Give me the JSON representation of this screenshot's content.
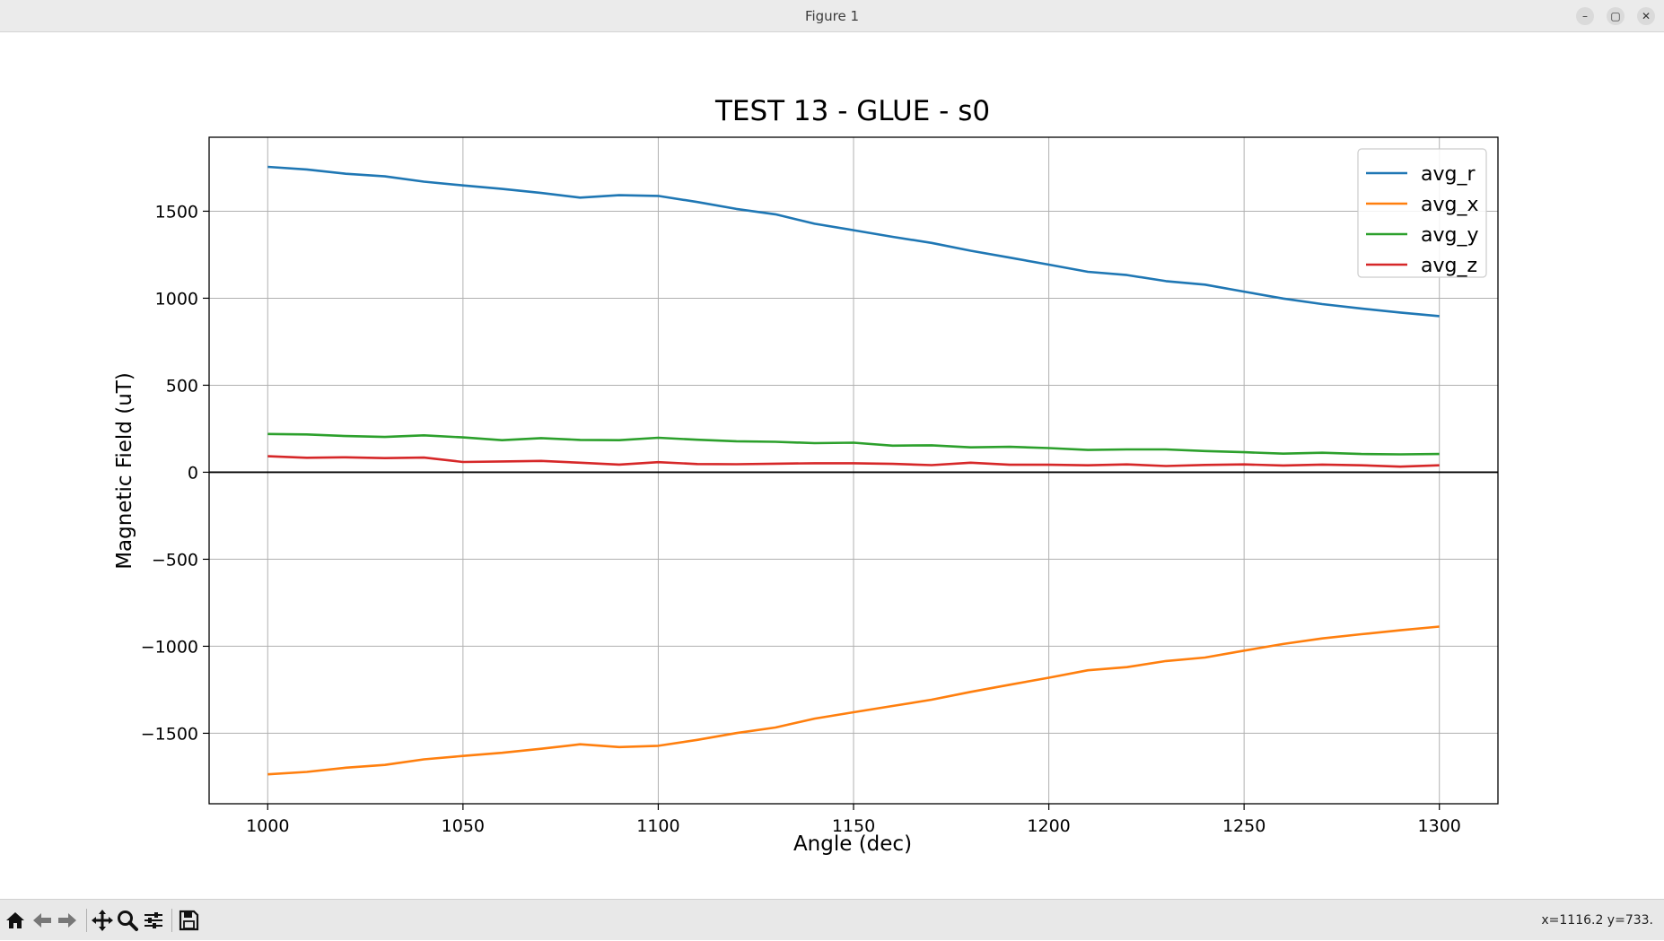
{
  "window": {
    "title": "Figure 1",
    "minimize_label": "–",
    "maximize_label": "▢",
    "close_label": "✕"
  },
  "toolbar": {
    "items": [
      "home-icon",
      "back-icon",
      "forward-icon",
      "pan-icon",
      "zoom-icon",
      "configure-subplots-icon",
      "save-icon"
    ],
    "coords_text": "x=1116.2 y=733."
  },
  "colors": {
    "avg_r": "#1f77b4",
    "avg_x": "#ff7f0e",
    "avg_y": "#2ca02c",
    "avg_z": "#d62728"
  },
  "chart_data": {
    "type": "line",
    "title": "TEST 13 - GLUE - s0",
    "xlabel": "Angle (dec)",
    "ylabel": "Magnetic Field (uT)",
    "xlim": [
      985,
      1315
    ],
    "ylim": [
      -1905,
      1925
    ],
    "xticks": [
      1000,
      1050,
      1100,
      1150,
      1200,
      1250,
      1300
    ],
    "yticks": [
      -1500,
      -1000,
      -500,
      0,
      500,
      1000,
      1500
    ],
    "xtick_labels": [
      "1000",
      "1050",
      "1100",
      "1150",
      "1200",
      "1250",
      "1300"
    ],
    "ytick_labels": [
      "−1500",
      "−1000",
      "−500",
      "0",
      "500",
      "1000",
      "1500"
    ],
    "grid": true,
    "zero_line": true,
    "legend_position": "top-right",
    "x": [
      1000,
      1010,
      1020,
      1030,
      1040,
      1050,
      1060,
      1070,
      1080,
      1090,
      1100,
      1110,
      1120,
      1130,
      1140,
      1150,
      1160,
      1170,
      1180,
      1190,
      1200,
      1210,
      1220,
      1230,
      1240,
      1250,
      1260,
      1270,
      1280,
      1290,
      1300
    ],
    "series": [
      {
        "name": "avg_r",
        "values": [
          1755,
          1740,
          1715,
          1700,
          1670,
          1648,
          1628,
          1605,
          1578,
          1592,
          1588,
          1553,
          1513,
          1482,
          1428,
          1391,
          1353,
          1318,
          1273,
          1233,
          1193,
          1152,
          1133,
          1098,
          1078,
          1038,
          998,
          966,
          941,
          918,
          897
        ]
      },
      {
        "name": "avg_x",
        "values": [
          -1736,
          -1722,
          -1698,
          -1682,
          -1650,
          -1630,
          -1612,
          -1589,
          -1563,
          -1579,
          -1572,
          -1538,
          -1499,
          -1467,
          -1416,
          -1379,
          -1343,
          -1307,
          -1262,
          -1221,
          -1181,
          -1138,
          -1120,
          -1085,
          -1065,
          -1025,
          -987,
          -955,
          -931,
          -908,
          -887
        ]
      },
      {
        "name": "avg_y",
        "values": [
          220,
          217,
          208,
          203,
          212,
          200,
          184,
          196,
          186,
          184,
          198,
          187,
          178,
          175,
          167,
          170,
          153,
          155,
          143,
          146,
          139,
          128,
          131,
          131,
          122,
          115,
          107,
          112,
          105,
          103,
          105
        ]
      },
      {
        "name": "avg_z",
        "values": [
          92,
          83,
          86,
          81,
          84,
          59,
          62,
          65,
          55,
          44,
          58,
          47,
          46,
          49,
          52,
          52,
          48,
          41,
          55,
          43,
          43,
          40,
          45,
          36,
          42,
          45,
          39,
          44,
          40,
          32,
          40
        ]
      }
    ]
  }
}
